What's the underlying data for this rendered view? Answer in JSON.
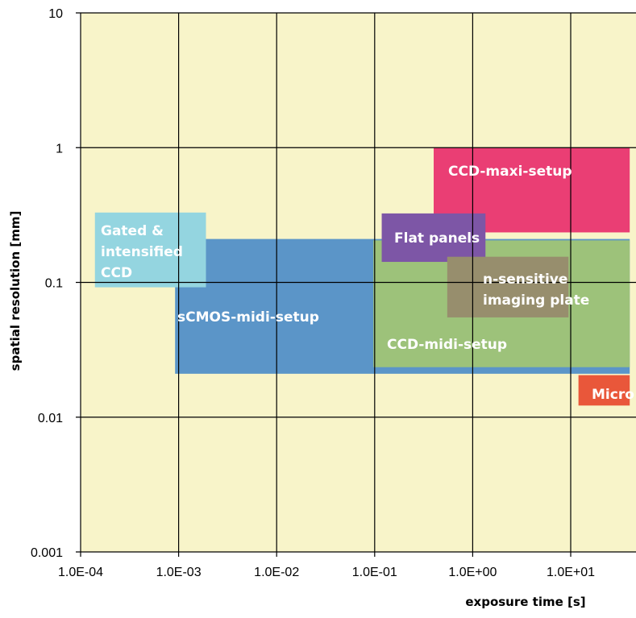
{
  "chart_data": {
    "type": "range-boxes",
    "x_scale": "log",
    "y_scale": "log",
    "xlim": [
      0.0001,
      40
    ],
    "ylim": [
      0.001,
      10
    ],
    "xlabel": "exposure time [s]",
    "ylabel": "spatial resolution [mm]",
    "x_ticks": [
      {
        "value": 0.0001,
        "label": "1.0E-04"
      },
      {
        "value": 0.001,
        "label": "1.0E-03"
      },
      {
        "value": 0.01,
        "label": "1.0E-02"
      },
      {
        "value": 0.1,
        "label": "1.0E-01"
      },
      {
        "value": 1,
        "label": "1.0E+00"
      },
      {
        "value": 10,
        "label": "1.0E+01"
      }
    ],
    "y_ticks": [
      {
        "value": 0.001,
        "label": "0.001"
      },
      {
        "value": 0.01,
        "label": "0.01"
      },
      {
        "value": 0.1,
        "label": "0.1"
      },
      {
        "value": 1,
        "label": "1"
      },
      {
        "value": 10,
        "label": "10"
      }
    ],
    "grid": true,
    "plot_background": "#f8f4c9",
    "regions": [
      {
        "name": "sCMOS-midi-setup",
        "lines": [
          "sCMOS-midi-setup"
        ],
        "x": [
          0.00092,
          40
        ],
        "y": [
          0.021,
          0.21
        ],
        "color": "#5b95c8"
      },
      {
        "name": "Gated & intensified CCD",
        "lines": [
          "Gated &",
          "intensified",
          "CCD"
        ],
        "x": [
          0.00014,
          0.0019
        ],
        "y": [
          0.092,
          0.33
        ],
        "color": "#94d5e0"
      },
      {
        "name": "CCD-maxi-setup",
        "lines": [
          "CCD-maxi-setup"
        ],
        "x": [
          0.4,
          40
        ],
        "y": [
          0.235,
          1.0
        ],
        "color": "#ea3e74"
      },
      {
        "name": "CCD-midi-setup",
        "lines": [
          "CCD-midi-setup"
        ],
        "x": [
          0.097,
          40
        ],
        "y": [
          0.0235,
          0.205
        ],
        "color": "#9dc27a"
      },
      {
        "name": "Flat panels",
        "lines": [
          "Flat panels"
        ],
        "x": [
          0.118,
          1.35
        ],
        "y": [
          0.142,
          0.325
        ],
        "color": "#7d56a6"
      },
      {
        "name": "n-sensitive imaging plate",
        "lines": [
          "n-sensitive",
          "imaging plate"
        ],
        "x": [
          0.55,
          9.5
        ],
        "y": [
          0.055,
          0.155
        ],
        "color": "#978e6d"
      },
      {
        "name": "Micro",
        "lines": [
          "Micro"
        ],
        "x": [
          12,
          40
        ],
        "y": [
          0.0122,
          0.0205
        ],
        "color": "#e9573a"
      }
    ]
  },
  "colors": {
    "gridline": "#000000",
    "region_text": "#ffffff"
  }
}
